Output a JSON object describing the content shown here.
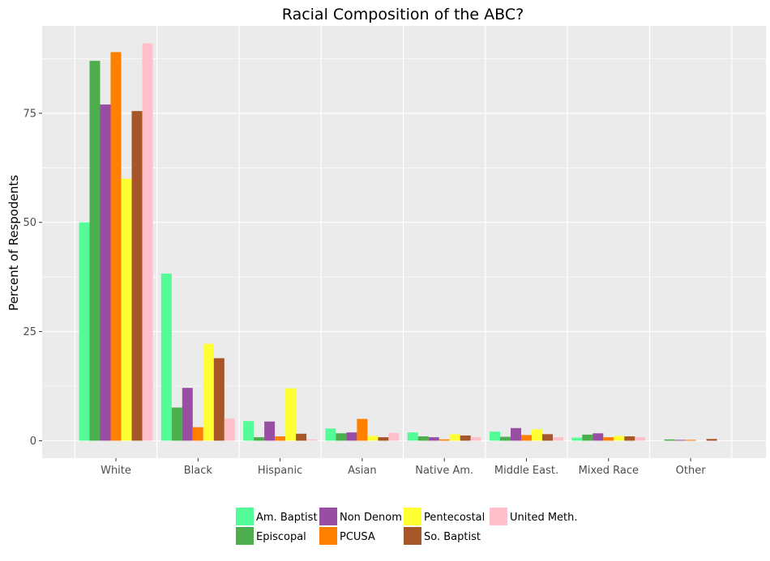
{
  "chart_data": {
    "type": "bar",
    "title": "Racial Composition of the ABC?",
    "xlabel": "",
    "ylabel": "Percent of Respodents",
    "ylim": [
      -4,
      95
    ],
    "yticks": [
      0,
      25,
      50,
      75
    ],
    "grid": true,
    "legend_position": "bottom",
    "categories": [
      "White",
      "Black",
      "Hispanic",
      "Asian",
      "Native Am.",
      "Middle East.",
      "Mixed Race",
      "Other"
    ],
    "series": [
      {
        "name": "Am. Baptist",
        "color": "#54fc98",
        "values": [
          50,
          38.3,
          4.5,
          2.8,
          1.9,
          2.1,
          0.7,
          0
        ]
      },
      {
        "name": "Episcopal",
        "color": "#4cae4c",
        "values": [
          87,
          7.6,
          0.8,
          1.7,
          1.0,
          0.9,
          1.4,
          0.3
        ]
      },
      {
        "name": "Non Denom",
        "color": "#984ea3",
        "values": [
          77,
          12.1,
          4.4,
          1.9,
          0.8,
          2.9,
          1.7,
          0.2
        ]
      },
      {
        "name": "PCUSA",
        "color": "#ff7f00",
        "values": [
          89,
          3.1,
          1.0,
          5.0,
          0.3,
          1.3,
          0.8,
          0.2
        ]
      },
      {
        "name": "Pentecostal",
        "color": "#ffff33",
        "values": [
          60,
          22.2,
          12.0,
          1.1,
          1.5,
          2.6,
          1.1,
          0
        ]
      },
      {
        "name": "So. Baptist",
        "color": "#a65628",
        "values": [
          75.5,
          18.9,
          1.6,
          0.8,
          1.2,
          1.5,
          1.0,
          0.4
        ]
      },
      {
        "name": "United Meth.",
        "color": "#ffc0cb",
        "values": [
          91,
          5.1,
          0.3,
          1.8,
          0.8,
          0.8,
          0.8,
          0
        ]
      }
    ]
  },
  "colors": {
    "panel_bg": "#ebebeb",
    "grid_major": "#ffffff",
    "tick_label": "#4d4d4d"
  }
}
